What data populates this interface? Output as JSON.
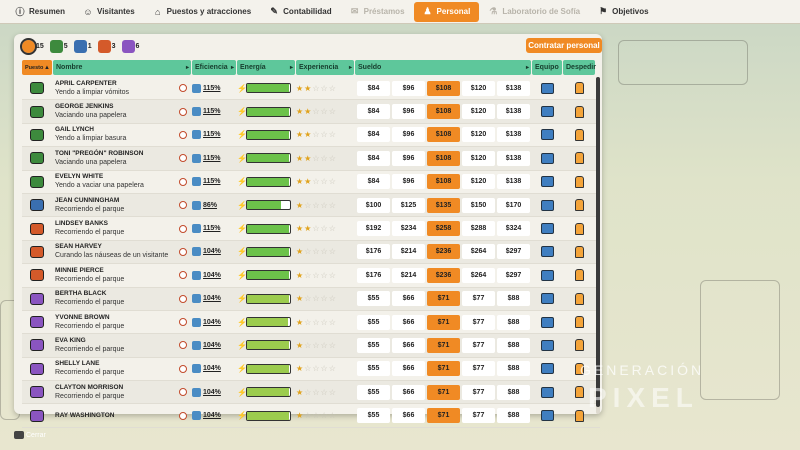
{
  "tabs": [
    {
      "label": "Resumen",
      "icon": "info-icon",
      "state": "normal"
    },
    {
      "label": "Visitantes",
      "icon": "visitors-icon",
      "state": "normal"
    },
    {
      "label": "Puestos y atracciones",
      "icon": "rides-icon",
      "state": "normal"
    },
    {
      "label": "Contabilidad",
      "icon": "accounting-icon",
      "state": "normal"
    },
    {
      "label": "Préstamos",
      "icon": "loans-icon",
      "state": "disabled"
    },
    {
      "label": "Personal",
      "icon": "staff-icon",
      "state": "active"
    },
    {
      "label": "Laboratorio de Sofía",
      "icon": "lab-icon",
      "state": "disabled"
    },
    {
      "label": "Objetivos",
      "icon": "goals-icon",
      "state": "normal"
    }
  ],
  "summary": [
    {
      "count": "15",
      "color": "#f08a24",
      "icon": "all-staff-icon",
      "selected": true
    },
    {
      "count": "5",
      "color": "#3d8a3d",
      "icon": "janitor-icon",
      "selected": false
    },
    {
      "count": "1",
      "color": "#3a6fb0",
      "icon": "mechanic-icon",
      "selected": false
    },
    {
      "count": "3",
      "color": "#d45a2a",
      "icon": "doctor-icon",
      "selected": false
    },
    {
      "count": "6",
      "color": "#8a55c0",
      "icon": "guard-icon",
      "selected": false
    }
  ],
  "hire_button": "Contratar personal",
  "columns": {
    "puesto": "Puesto",
    "nombre": "Nombre",
    "eficiencia": "Eficiencia",
    "energia": "Energía",
    "experiencia": "Experiencia",
    "sueldo": "Sueldo",
    "equipo": "Equipo",
    "despedir": "Despedir"
  },
  "colors": {
    "accent": "#f08a24",
    "header": "#5ec79b",
    "janitor": "#3d8a3d",
    "mechanic": "#3a6fb0",
    "doctor": "#d45a2a",
    "guard": "#8a55c0"
  },
  "staff": [
    {
      "role": "janitor",
      "name": "APRIL CARPENTER",
      "activity": "Yendo a limpiar vómitos",
      "efficiency": "115%",
      "energy": 0.97,
      "stars": 2,
      "salaries": [
        "$84",
        "$96",
        "$108",
        "$120",
        "$138"
      ],
      "selected": 2
    },
    {
      "role": "janitor",
      "name": "GEORGE JENKINS",
      "activity": "Vaciando una papelera",
      "efficiency": "115%",
      "energy": 0.97,
      "stars": 2,
      "salaries": [
        "$84",
        "$96",
        "$108",
        "$120",
        "$138"
      ],
      "selected": 2
    },
    {
      "role": "janitor",
      "name": "GAIL LYNCH",
      "activity": "Yendo a limpiar basura",
      "efficiency": "115%",
      "energy": 0.97,
      "stars": 2,
      "salaries": [
        "$84",
        "$96",
        "$108",
        "$120",
        "$138"
      ],
      "selected": 2
    },
    {
      "role": "janitor",
      "name": "TONI \"PREGÓN\" ROBINSON",
      "activity": "Vaciando una papelera",
      "efficiency": "115%",
      "energy": 0.97,
      "stars": 2,
      "salaries": [
        "$84",
        "$96",
        "$108",
        "$120",
        "$138"
      ],
      "selected": 2
    },
    {
      "role": "janitor",
      "name": "EVELYN WHITE",
      "activity": "Yendo a vaciar una papelera",
      "efficiency": "115%",
      "energy": 0.97,
      "stars": 2,
      "salaries": [
        "$84",
        "$96",
        "$108",
        "$120",
        "$138"
      ],
      "selected": 2
    },
    {
      "role": "mechanic",
      "name": "JEAN CUNNINGHAM",
      "activity": "Recorriendo el parque",
      "efficiency": "86%",
      "energy": 0.8,
      "stars": 1,
      "salaries": [
        "$100",
        "$125",
        "$135",
        "$150",
        "$170"
      ],
      "selected": 2
    },
    {
      "role": "doctor",
      "name": "LINDSEY BANKS",
      "activity": "Recorriendo el parque",
      "efficiency": "115%",
      "energy": 0.97,
      "stars": 2,
      "salaries": [
        "$192",
        "$234",
        "$258",
        "$288",
        "$324"
      ],
      "selected": 2
    },
    {
      "role": "doctor",
      "name": "SEAN HARVEY",
      "activity": "Curando las náuseas de un visitante",
      "efficiency": "104%",
      "energy": 0.97,
      "stars": 1,
      "salaries": [
        "$176",
        "$214",
        "$236",
        "$264",
        "$297"
      ],
      "selected": 2
    },
    {
      "role": "doctor",
      "name": "MINNIE PIERCE",
      "activity": "Recorriendo el parque",
      "efficiency": "104%",
      "energy": 0.97,
      "stars": 1,
      "salaries": [
        "$176",
        "$214",
        "$236",
        "$264",
        "$297"
      ],
      "selected": 2
    },
    {
      "role": "guard",
      "name": "BERTHA BLACK",
      "activity": "Recorriendo el parque",
      "efficiency": "104%",
      "energy": 0.97,
      "stars": 1,
      "salaries": [
        "$55",
        "$66",
        "$71",
        "$77",
        "$88"
      ],
      "selected": 2
    },
    {
      "role": "guard",
      "name": "YVONNE BROWN",
      "activity": "Recorriendo el parque",
      "efficiency": "104%",
      "energy": 0.95,
      "stars": 1,
      "salaries": [
        "$55",
        "$66",
        "$71",
        "$77",
        "$88"
      ],
      "selected": 2
    },
    {
      "role": "guard",
      "name": "EVA KING",
      "activity": "Recorriendo el parque",
      "efficiency": "104%",
      "energy": 0.97,
      "stars": 1,
      "salaries": [
        "$55",
        "$66",
        "$71",
        "$77",
        "$88"
      ],
      "selected": 2
    },
    {
      "role": "guard",
      "name": "SHELLY LANE",
      "activity": "Recorriendo el parque",
      "efficiency": "104%",
      "energy": 0.97,
      "stars": 1,
      "salaries": [
        "$55",
        "$66",
        "$71",
        "$77",
        "$88"
      ],
      "selected": 2
    },
    {
      "role": "guard",
      "name": "CLAYTON MORRISON",
      "activity": "Recorriendo el parque",
      "efficiency": "104%",
      "energy": 0.97,
      "stars": 1,
      "salaries": [
        "$55",
        "$66",
        "$71",
        "$77",
        "$88"
      ],
      "selected": 2
    },
    {
      "role": "guard",
      "name": "RAY WASHINGTON",
      "activity": "",
      "efficiency": "104%",
      "energy": 0.97,
      "stars": 1,
      "salaries": [
        "$55",
        "$66",
        "$71",
        "$77",
        "$88"
      ],
      "selected": 2
    }
  ],
  "close_label": "Cerrar",
  "watermark": {
    "line1": "GENERACIÓN",
    "line2": "PIXEL"
  }
}
